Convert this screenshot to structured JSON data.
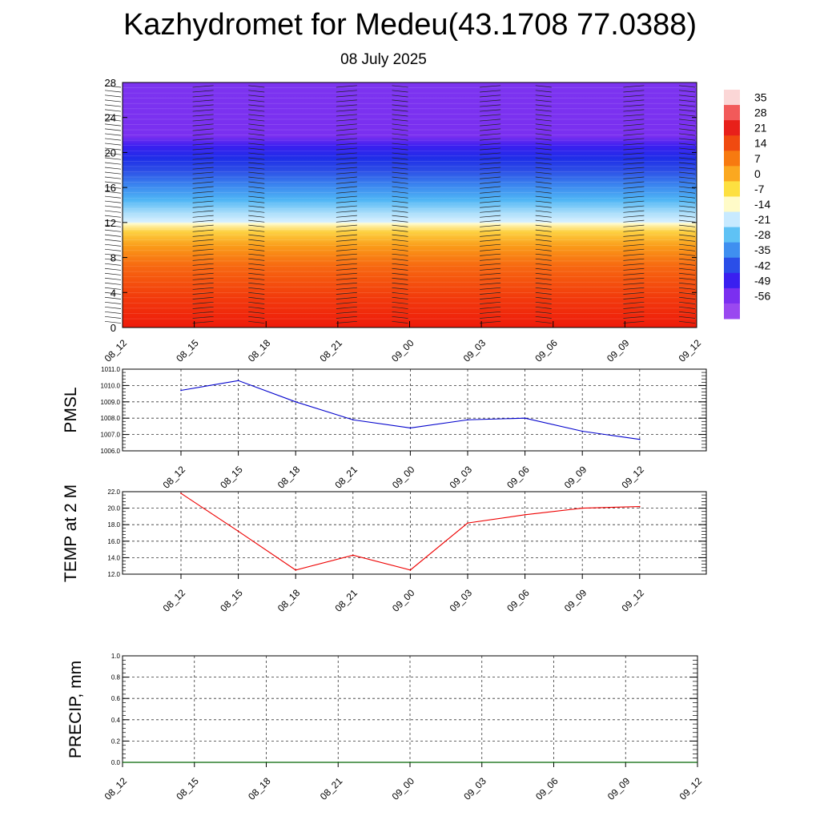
{
  "title": "Kazhydromet for Medeu(43.1708 77.0388)",
  "subtitle": "08 July 2025",
  "chart_data": [
    {
      "type": "heatmap",
      "panel": "temperature cross-section",
      "x": [
        "08_12",
        "08_15",
        "08_18",
        "08_21",
        "09_00",
        "09_03",
        "09_06",
        "09_09",
        "09_12"
      ],
      "y_ticks": [
        0,
        4,
        8,
        12,
        16,
        20,
        24,
        28
      ],
      "ylim": [
        0,
        28
      ],
      "colorbar_labels": [
        "35",
        "28",
        "21",
        "14",
        "7",
        "0",
        "-7",
        "-14",
        "-21",
        "-28",
        "-35",
        "-42",
        "-49",
        "-56"
      ],
      "colors": [
        "#fbd6d6",
        "#f25a5a",
        "#e8201a",
        "#f04a10",
        "#f77a10",
        "#fba820",
        "#fde040",
        "#fffbc8",
        "#c8eaff",
        "#5fc2f5",
        "#3f8ff0",
        "#2a4ee8",
        "#3a1ff0",
        "#7b2ff0",
        "#9a48f0"
      ],
      "wind_barbs": true
    },
    {
      "type": "line",
      "ylabel": "PMSL",
      "x": [
        "08_12",
        "08_15",
        "08_18",
        "08_21",
        "09_00",
        "09_03",
        "09_06",
        "09_09",
        "09_12"
      ],
      "series": [
        {
          "values": [
            1009.7,
            1010.3,
            1009.0,
            1007.9,
            1007.4,
            1007.9,
            1008.0,
            1007.2,
            1006.7
          ]
        }
      ],
      "y_ticks": [
        "1006.0",
        "1007.0",
        "1008.0",
        "1009.0",
        "1010.0",
        "1011.0"
      ],
      "ylim": [
        1006.0,
        1011.0
      ],
      "color": "#0000cc",
      "grid": true
    },
    {
      "type": "line",
      "ylabel": "TEMP at 2 M",
      "x": [
        "08_12",
        "08_15",
        "08_18",
        "08_21",
        "09_00",
        "09_03",
        "09_06",
        "09_09",
        "09_12"
      ],
      "series": [
        {
          "values": [
            21.8,
            17.2,
            12.5,
            14.3,
            12.5,
            18.2,
            19.2,
            20.0,
            20.2
          ]
        }
      ],
      "y_ticks": [
        "12.0",
        "14.0",
        "16.0",
        "18.0",
        "20.0",
        "22.0"
      ],
      "ylim": [
        12.0,
        22.0
      ],
      "color": "#ee0000",
      "grid": true
    },
    {
      "type": "line",
      "ylabel": "PRECIP, mm",
      "x": [
        "08_12",
        "08_15",
        "08_18",
        "08_21",
        "09_00",
        "09_03",
        "09_06",
        "09_09",
        "09_12"
      ],
      "series": [
        {
          "values": [
            0,
            0,
            0,
            0,
            0,
            0,
            0,
            0,
            0
          ]
        }
      ],
      "y_ticks": [
        "0.0",
        "0.2",
        "0.4",
        "0.6",
        "0.8",
        "1.0"
      ],
      "ylim": [
        0.0,
        1.0
      ],
      "color": "#006400",
      "grid": true
    }
  ]
}
